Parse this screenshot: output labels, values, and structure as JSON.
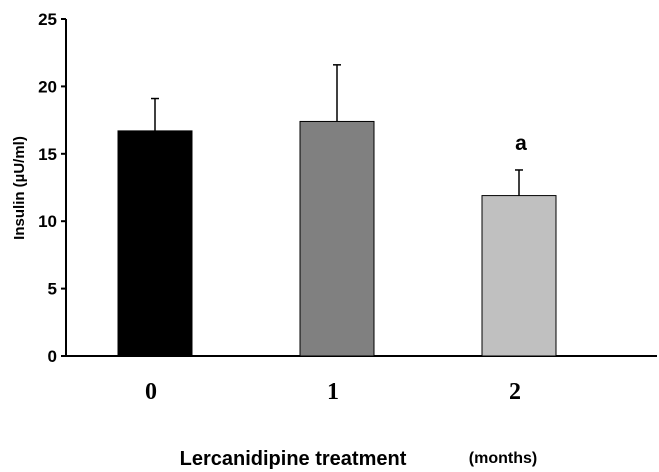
{
  "chart_data": {
    "type": "bar",
    "categories": [
      "0",
      "1",
      "2"
    ],
    "values": [
      16.7,
      17.4,
      11.9
    ],
    "errors": [
      2.4,
      4.2,
      1.9
    ],
    "colors": [
      "#000000",
      "#808080",
      "#c0c0c0"
    ],
    "annotations": [
      "",
      "",
      "a"
    ],
    "ylabel": "Insulin (µU/ml)",
    "xlabel": "Lercanidipine treatment",
    "xlabel_unit": "(months)",
    "ylim": [
      0,
      25
    ],
    "yticks": [
      0,
      5,
      10,
      15,
      20,
      25
    ],
    "grid": false,
    "legend": "none"
  }
}
